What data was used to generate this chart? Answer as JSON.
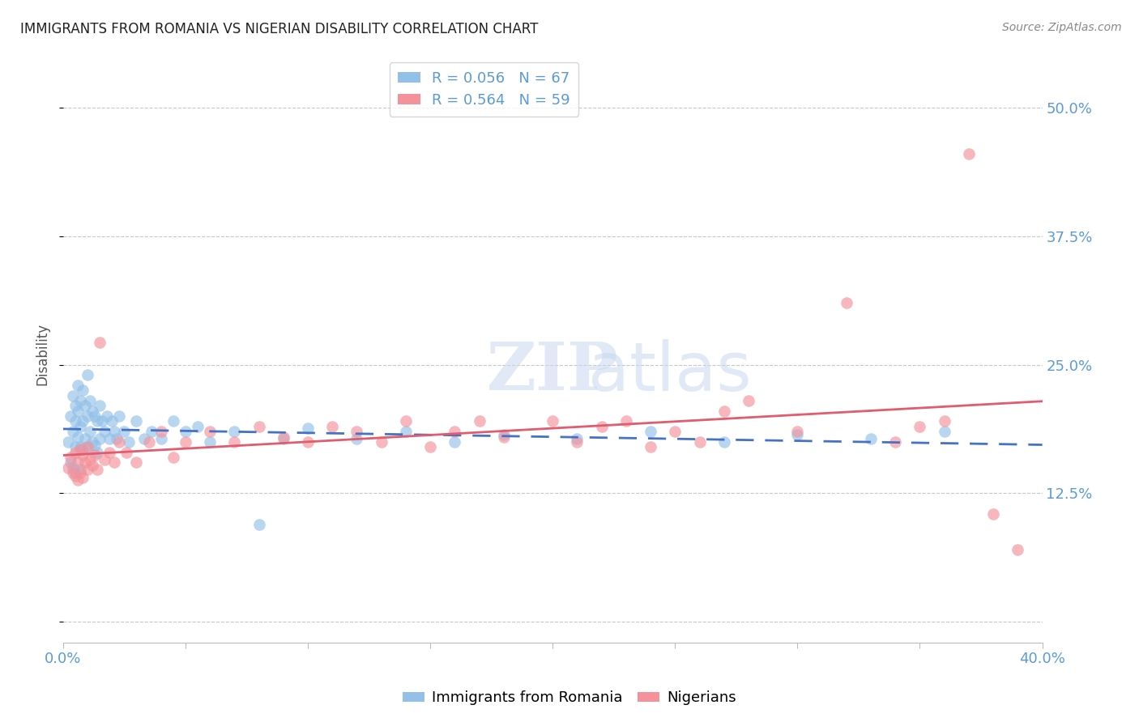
{
  "title": "IMMIGRANTS FROM ROMANIA VS NIGERIAN DISABILITY CORRELATION CHART",
  "source": "Source: ZipAtlas.com",
  "ylabel": "Disability",
  "yticks": [
    0.0,
    0.125,
    0.25,
    0.375,
    0.5
  ],
  "ytick_labels": [
    "",
    "12.5%",
    "25.0%",
    "37.5%",
    "50.0%"
  ],
  "xlim": [
    0.0,
    0.4
  ],
  "ylim": [
    -0.02,
    0.54
  ],
  "series1_label": "Immigrants from Romania",
  "series2_label": "Nigerians",
  "series1_color": "#92C0E8",
  "series2_color": "#F4919A",
  "series1_line_color": "#4472C4",
  "series2_line_color": "#E05C6E",
  "axis_color": "#5B9BD5",
  "grid_color": "#C8C8C8",
  "legend_entry1": "R = 0.056   N = 67",
  "legend_entry2": "R = 0.564   N = 59",
  "romania_x": [
    0.002,
    0.003,
    0.003,
    0.004,
    0.004,
    0.004,
    0.005,
    0.005,
    0.005,
    0.005,
    0.006,
    0.006,
    0.006,
    0.007,
    0.007,
    0.007,
    0.007,
    0.008,
    0.008,
    0.008,
    0.009,
    0.009,
    0.01,
    0.01,
    0.01,
    0.011,
    0.011,
    0.012,
    0.012,
    0.013,
    0.013,
    0.014,
    0.014,
    0.015,
    0.015,
    0.016,
    0.017,
    0.018,
    0.019,
    0.02,
    0.021,
    0.022,
    0.023,
    0.025,
    0.027,
    0.03,
    0.033,
    0.036,
    0.04,
    0.045,
    0.05,
    0.055,
    0.06,
    0.07,
    0.08,
    0.09,
    0.1,
    0.12,
    0.14,
    0.16,
    0.18,
    0.21,
    0.24,
    0.27,
    0.3,
    0.33,
    0.36
  ],
  "romania_y": [
    0.175,
    0.2,
    0.155,
    0.22,
    0.185,
    0.15,
    0.21,
    0.195,
    0.17,
    0.145,
    0.23,
    0.205,
    0.18,
    0.215,
    0.19,
    0.17,
    0.148,
    0.225,
    0.195,
    0.168,
    0.21,
    0.178,
    0.24,
    0.2,
    0.17,
    0.215,
    0.185,
    0.205,
    0.175,
    0.2,
    0.172,
    0.195,
    0.165,
    0.21,
    0.178,
    0.195,
    0.185,
    0.2,
    0.178,
    0.195,
    0.185,
    0.178,
    0.2,
    0.185,
    0.175,
    0.195,
    0.178,
    0.185,
    0.178,
    0.195,
    0.185,
    0.19,
    0.175,
    0.185,
    0.095,
    0.178,
    0.188,
    0.178,
    0.185,
    0.175,
    0.182,
    0.178,
    0.185,
    0.175,
    0.182,
    0.178,
    0.185
  ],
  "nigeria_x": [
    0.002,
    0.003,
    0.004,
    0.005,
    0.005,
    0.006,
    0.006,
    0.007,
    0.007,
    0.008,
    0.008,
    0.009,
    0.01,
    0.01,
    0.011,
    0.012,
    0.013,
    0.014,
    0.015,
    0.017,
    0.019,
    0.021,
    0.023,
    0.026,
    0.03,
    0.035,
    0.04,
    0.045,
    0.05,
    0.06,
    0.07,
    0.08,
    0.09,
    0.1,
    0.11,
    0.12,
    0.13,
    0.14,
    0.15,
    0.16,
    0.17,
    0.18,
    0.2,
    0.21,
    0.22,
    0.23,
    0.24,
    0.25,
    0.26,
    0.27,
    0.28,
    0.3,
    0.32,
    0.34,
    0.35,
    0.36,
    0.37,
    0.38,
    0.39
  ],
  "nigeria_y": [
    0.15,
    0.16,
    0.145,
    0.165,
    0.142,
    0.155,
    0.138,
    0.168,
    0.145,
    0.162,
    0.14,
    0.155,
    0.17,
    0.148,
    0.158,
    0.152,
    0.162,
    0.148,
    0.272,
    0.158,
    0.165,
    0.155,
    0.175,
    0.165,
    0.155,
    0.175,
    0.185,
    0.16,
    0.175,
    0.185,
    0.175,
    0.19,
    0.18,
    0.175,
    0.19,
    0.185,
    0.175,
    0.195,
    0.17,
    0.185,
    0.195,
    0.18,
    0.195,
    0.175,
    0.19,
    0.195,
    0.17,
    0.185,
    0.175,
    0.205,
    0.215,
    0.185,
    0.31,
    0.175,
    0.19,
    0.195,
    0.455,
    0.105,
    0.07
  ]
}
